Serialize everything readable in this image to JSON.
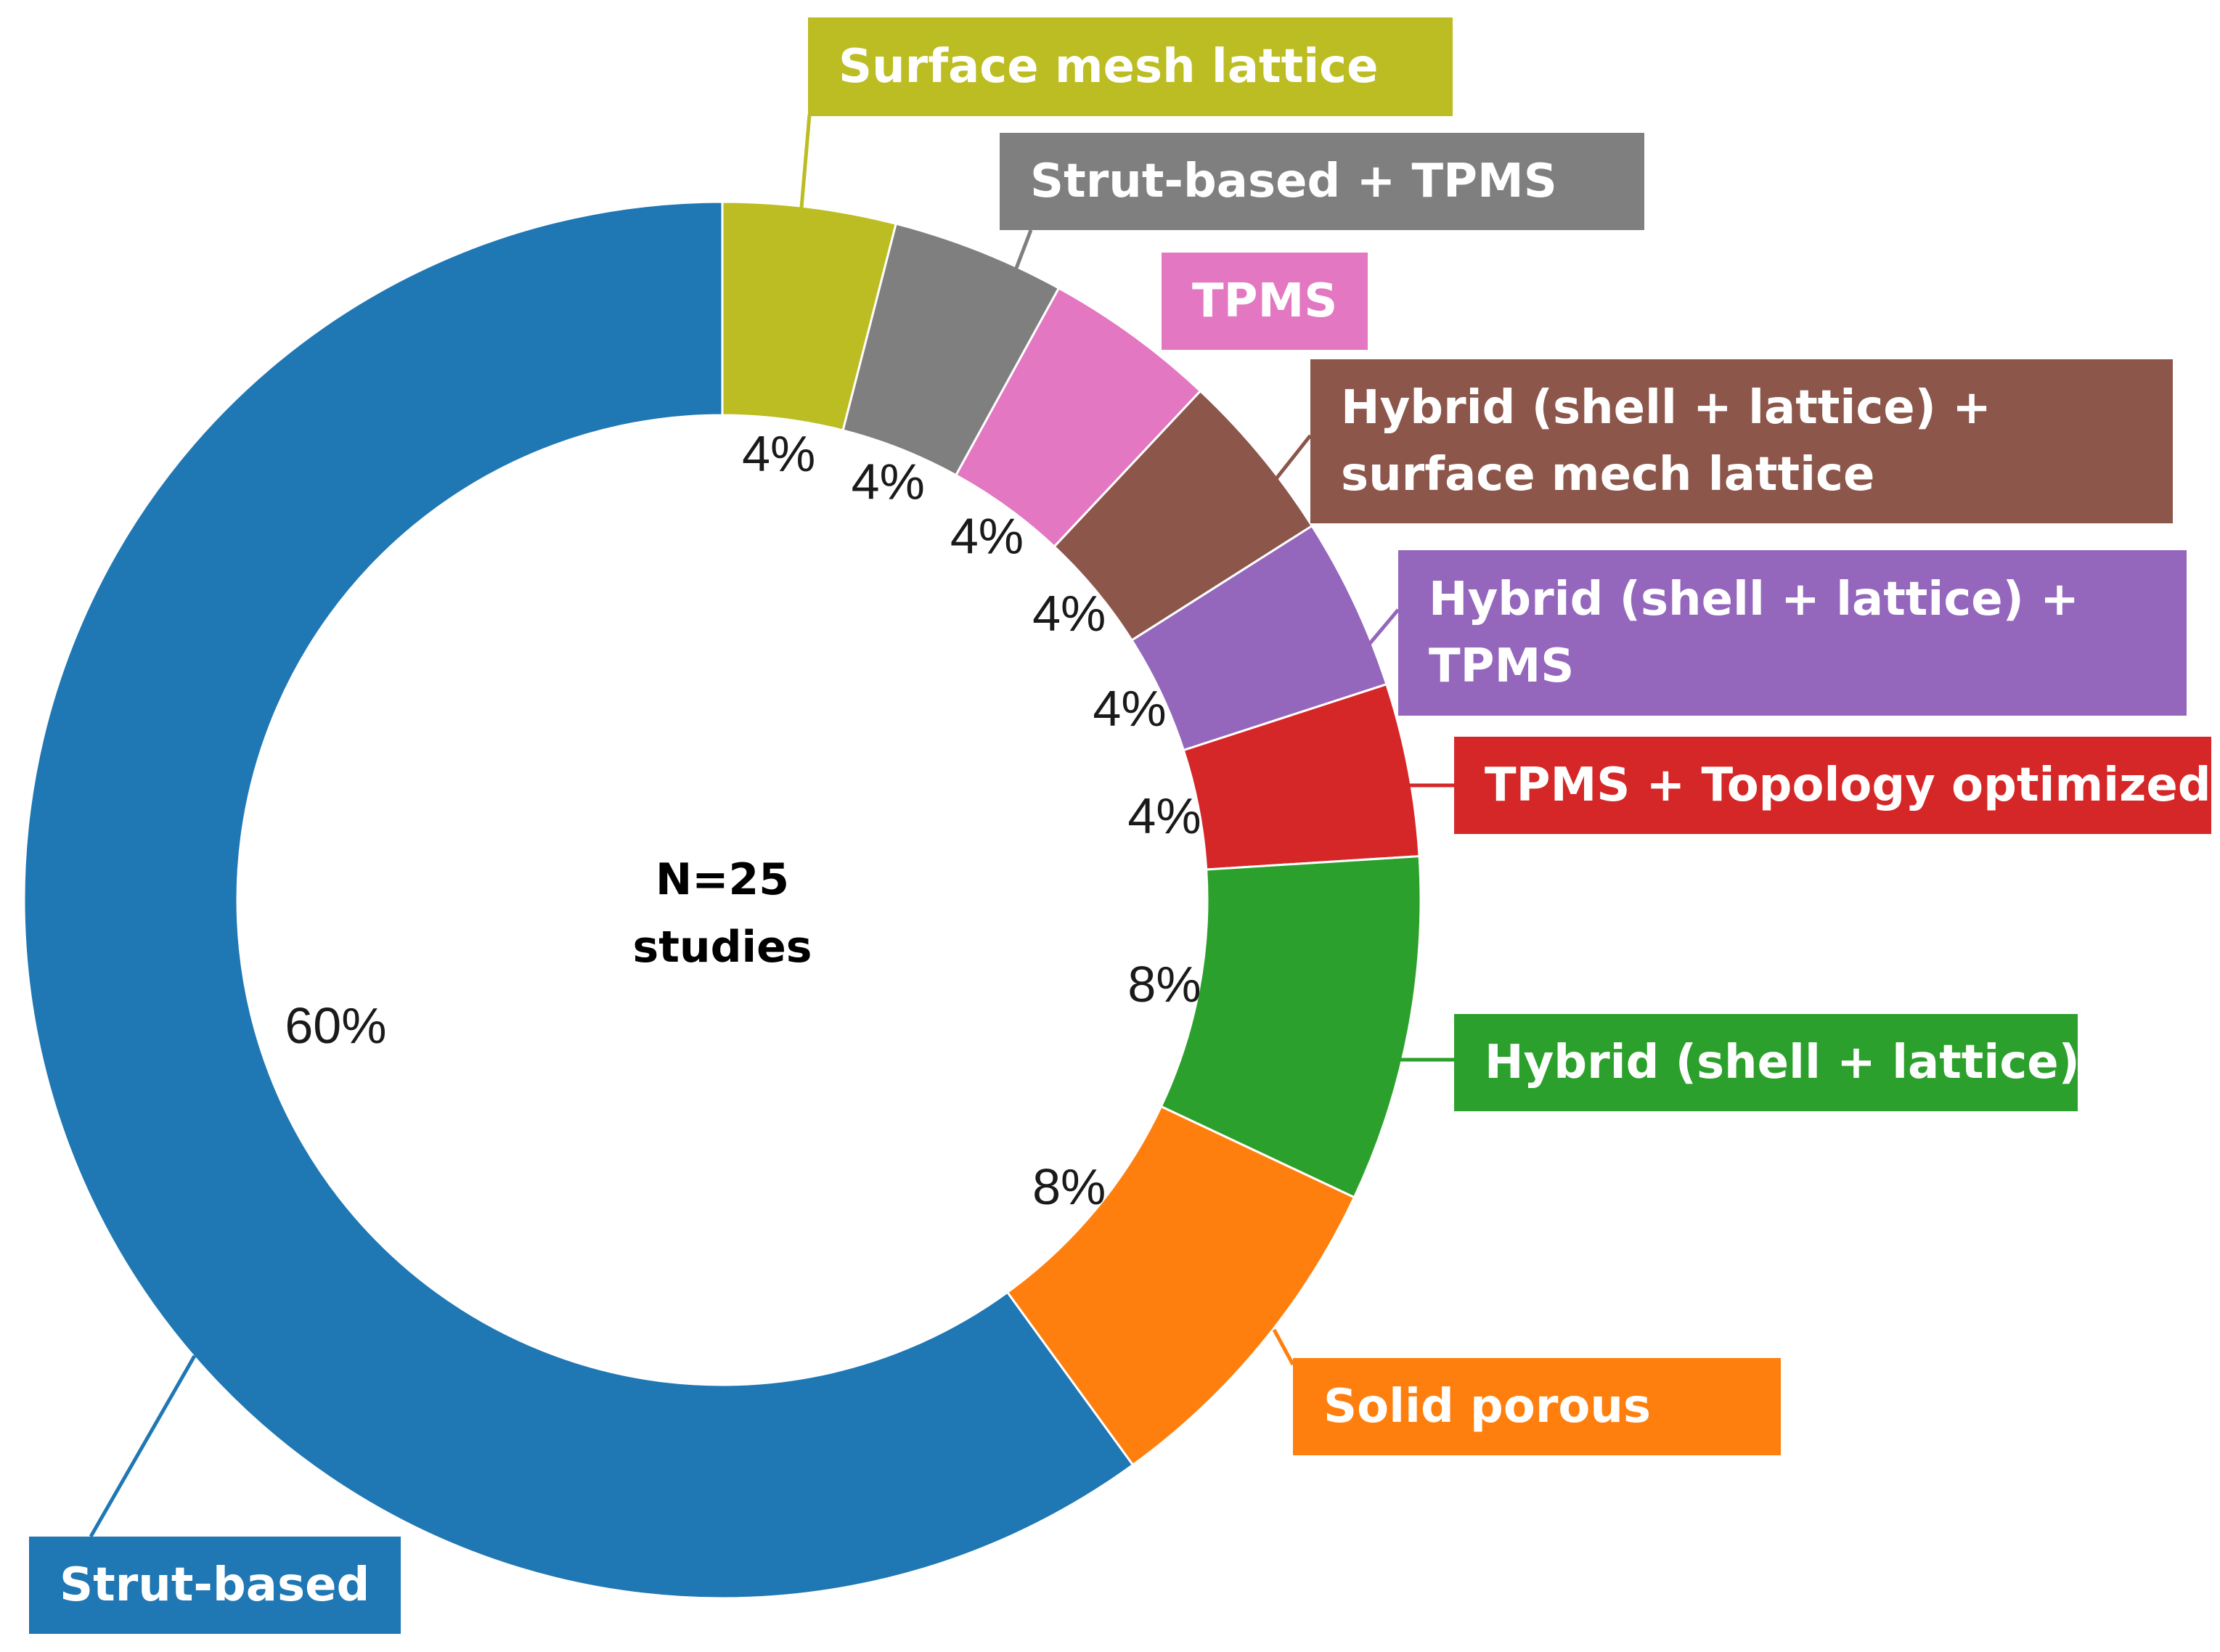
{
  "chart_data": {
    "type": "pie",
    "variant": "donut",
    "center_text": [
      "N=25",
      "studies"
    ],
    "slices": [
      {
        "name": "Surface mesh lattice",
        "value": 4,
        "label": "4%",
        "color": "#bcbd22"
      },
      {
        "name": "Strut-based + TPMS",
        "value": 4,
        "label": "4%",
        "color": "#7f7f7f"
      },
      {
        "name": "TPMS",
        "value": 4,
        "label": "4%",
        "color": "#e377c2"
      },
      {
        "name": "Hybrid (shell + lattice) + surface mech lattice",
        "lines": [
          "Hybrid (shell + lattice) +",
          "surface mech lattice"
        ],
        "value": 4,
        "label": "4%",
        "color": "#8c564b"
      },
      {
        "name": "Hybrid (shell + lattice) + TPMS",
        "lines": [
          "Hybrid (shell + lattice) +",
          "TPMS"
        ],
        "value": 4,
        "label": "4%",
        "color": "#9467bd"
      },
      {
        "name": "TPMS + Topology optimized",
        "value": 4,
        "label": "4%",
        "color": "#d62728"
      },
      {
        "name": "Hybrid (shell + lattice)",
        "value": 8,
        "label": "8%",
        "color": "#2ca02c"
      },
      {
        "name": "Solid porous",
        "value": 8,
        "label": "8%",
        "color": "#ff7f0e"
      },
      {
        "name": "Strut-based",
        "value": 60,
        "label": "60%",
        "color": "#1f77b4"
      }
    ]
  }
}
